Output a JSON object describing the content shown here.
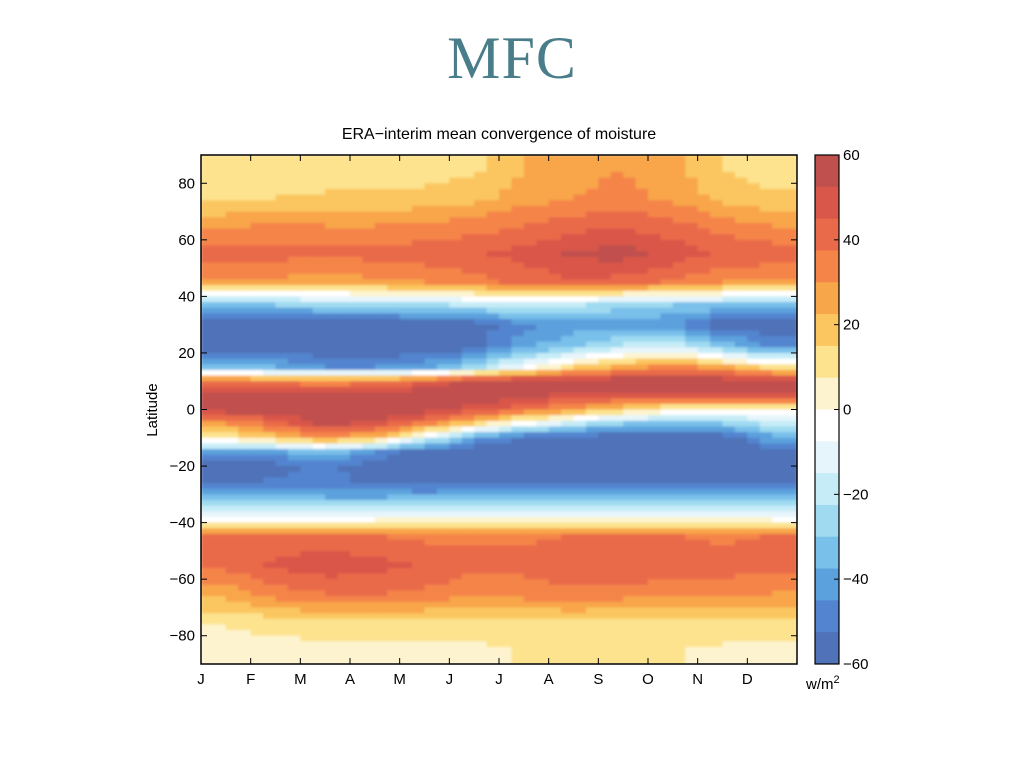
{
  "slide": {
    "title": "MFC"
  },
  "chart_data": {
    "type": "heatmap",
    "title": "ERA−interim mean convergence of moisture",
    "xlabel": "",
    "ylabel": "Latitude",
    "x_categories": [
      "J",
      "F",
      "M",
      "A",
      "M",
      "J",
      "J",
      "A",
      "S",
      "O",
      "N",
      "D"
    ],
    "y_ticks": [
      "80",
      "60",
      "40",
      "20",
      "0",
      "−20",
      "−40",
      "−60",
      "−80"
    ],
    "y_tick_values": [
      80,
      60,
      40,
      20,
      0,
      -20,
      -40,
      -60,
      -80
    ],
    "ylim": [
      -90,
      90
    ],
    "colorbar": {
      "ticks": [
        "60",
        "40",
        "20",
        "0",
        "−20",
        "−40",
        "−60"
      ],
      "tick_values": [
        60,
        40,
        20,
        0,
        -20,
        -40,
        -60
      ],
      "unit_label": "w/m",
      "unit_superscript": "2",
      "range": [
        -60,
        60
      ],
      "colors_top_to_bottom": [
        "#c0504d",
        "#d9574a",
        "#e96a4a",
        "#f58448",
        "#f8a64a",
        "#fbc65f",
        "#fde38e",
        "#fdf4cf",
        "#ffffff",
        "#e6f5fb",
        "#c6ecf7",
        "#9fdaf1",
        "#79c0ea",
        "#5ba1dd",
        "#5384cf",
        "#4f72b8"
      ]
    },
    "series": [
      {
        "name": "",
        "x": [
          "J",
          "F",
          "M",
          "A",
          "M",
          "J",
          "J",
          "A",
          "S",
          "O",
          "N",
          "D"
        ],
        "lat": [
          85,
          75,
          65,
          55,
          45,
          37,
          30,
          22,
          15,
          10,
          5,
          0,
          -5,
          -10,
          -15,
          -20,
          -25,
          -30,
          -35,
          -40,
          -45,
          -55,
          -65,
          -75,
          -85
        ],
        "values": [
          [
            10,
            10,
            11,
            12,
            12,
            14,
            22,
            28,
            30,
            26,
            15,
            12
          ],
          [
            14,
            15,
            16,
            16,
            17,
            20,
            26,
            30,
            32,
            28,
            20,
            16
          ],
          [
            28,
            32,
            30,
            30,
            32,
            34,
            38,
            42,
            44,
            40,
            34,
            30
          ],
          [
            40,
            40,
            40,
            40,
            42,
            44,
            48,
            54,
            56,
            50,
            44,
            42
          ],
          [
            30,
            28,
            26,
            28,
            30,
            34,
            40,
            44,
            42,
            36,
            30,
            30
          ],
          [
            -30,
            -30,
            -28,
            -26,
            -24,
            -20,
            -15,
            -20,
            -28,
            -30,
            -30,
            -30
          ],
          [
            -60,
            -60,
            -60,
            -60,
            -60,
            -58,
            -48,
            -42,
            -40,
            -45,
            -58,
            -60
          ],
          [
            -60,
            -60,
            -60,
            -60,
            -60,
            -55,
            -40,
            -30,
            -20,
            -15,
            -30,
            -45
          ],
          [
            -30,
            -38,
            -45,
            -45,
            -40,
            -25,
            -5,
            15,
            25,
            35,
            25,
            10
          ],
          [
            40,
            35,
            30,
            35,
            45,
            55,
            60,
            60,
            60,
            60,
            60,
            58
          ],
          [
            55,
            55,
            58,
            60,
            60,
            58,
            55,
            50,
            50,
            48,
            50,
            52
          ],
          [
            58,
            58,
            60,
            60,
            58,
            50,
            40,
            30,
            15,
            5,
            0,
            5
          ],
          [
            30,
            40,
            55,
            50,
            35,
            15,
            -5,
            -20,
            -30,
            -35,
            -30,
            -20
          ],
          [
            5,
            20,
            30,
            20,
            -10,
            -40,
            -55,
            -58,
            -60,
            -60,
            -58,
            -40
          ],
          [
            -40,
            -40,
            -30,
            -45,
            -58,
            -60,
            -60,
            -60,
            -60,
            -60,
            -60,
            -55
          ],
          [
            -60,
            -55,
            -50,
            -58,
            -60,
            -60,
            -60,
            -60,
            -60,
            -60,
            -60,
            -60
          ],
          [
            -55,
            -52,
            -50,
            -55,
            -58,
            -60,
            -60,
            -60,
            -60,
            -60,
            -58,
            -56
          ],
          [
            -40,
            -40,
            -42,
            -42,
            -42,
            -40,
            -38,
            -38,
            -38,
            -40,
            -40,
            -40
          ],
          [
            -20,
            -20,
            -20,
            -20,
            -18,
            -18,
            -18,
            -18,
            -18,
            -18,
            -18,
            -20
          ],
          [
            5,
            5,
            5,
            5,
            5,
            5,
            5,
            5,
            5,
            5,
            5,
            5
          ],
          [
            38,
            40,
            40,
            38,
            36,
            36,
            36,
            38,
            38,
            38,
            36,
            38
          ],
          [
            40,
            46,
            50,
            48,
            44,
            40,
            40,
            42,
            44,
            44,
            42,
            40
          ],
          [
            26,
            34,
            38,
            38,
            36,
            32,
            34,
            36,
            34,
            32,
            32,
            30
          ],
          [
            8,
            12,
            14,
            14,
            14,
            12,
            14,
            14,
            14,
            14,
            14,
            12
          ],
          [
            4,
            4,
            4,
            4,
            4,
            6,
            8,
            8,
            8,
            8,
            6,
            5
          ]
        ]
      }
    ]
  }
}
